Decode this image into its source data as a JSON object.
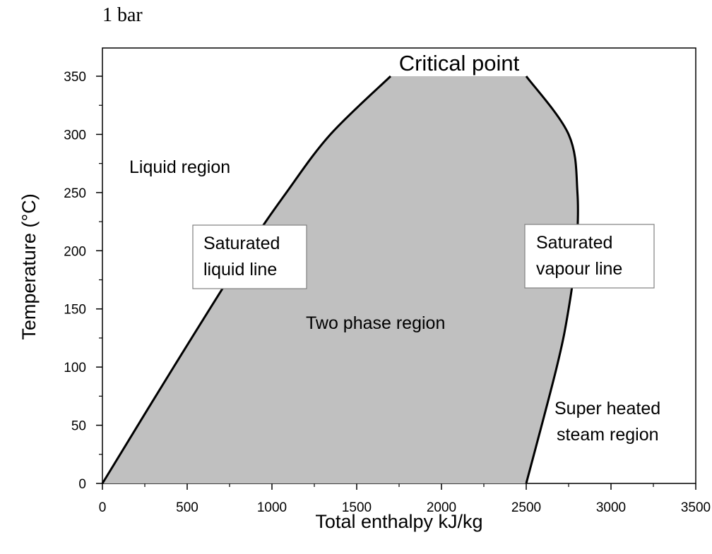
{
  "header_text": "1 bar",
  "chart_data": {
    "type": "area",
    "xlabel": "Total enthalpy kJ/kg",
    "ylabel": "Temperature (°C)",
    "xlim": [
      0,
      3500
    ],
    "ylim": [
      0,
      375
    ],
    "x_ticks": [
      0,
      500,
      1000,
      1500,
      2000,
      2500,
      3000,
      3500
    ],
    "y_ticks": [
      0,
      50,
      100,
      150,
      200,
      250,
      300,
      350
    ],
    "grid": false,
    "series": [
      {
        "name": "Saturated liquid line",
        "points": [
          [
            0,
            0
          ],
          [
            420,
            100
          ],
          [
            850,
            200
          ],
          [
            1085,
            250
          ],
          [
            1345,
            300
          ],
          [
            1700,
            350
          ]
        ]
      },
      {
        "name": "Saturated vapour line",
        "points": [
          [
            2500,
            0
          ],
          [
            2680,
            100
          ],
          [
            2750,
            150
          ],
          [
            2795,
            200
          ],
          [
            2802,
            250
          ],
          [
            2750,
            300
          ],
          [
            2500,
            350
          ]
        ]
      }
    ],
    "region_fill": "#c0c0c0",
    "annotations": {
      "critical_point": "Critical point",
      "liquid_region": "Liquid region",
      "two_phase_region": "Two phase region",
      "saturated_liquid_line": [
        "Saturated",
        "liquid line"
      ],
      "saturated_vapour_line": [
        "Saturated",
        "vapour line"
      ],
      "super_heated_region": [
        "Super heated",
        "steam region"
      ]
    }
  }
}
